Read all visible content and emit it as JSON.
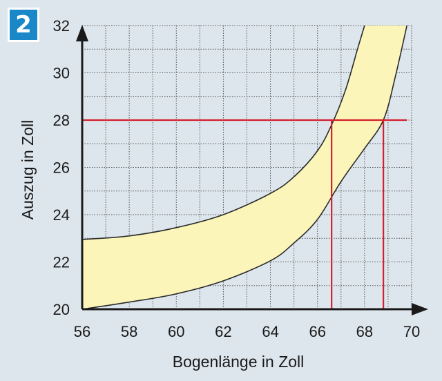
{
  "figure_number": "2",
  "chart_data": {
    "type": "area",
    "xlabel": "Bogenlänge in Zoll",
    "ylabel": "Auszug in Zoll",
    "xlim": [
      56,
      70
    ],
    "ylim": [
      20,
      32
    ],
    "x_ticks": [
      "56",
      "58",
      "60",
      "62",
      "64",
      "66",
      "68",
      "70"
    ],
    "y_ticks": [
      "20",
      "22",
      "24",
      "26",
      "28",
      "30",
      "32"
    ],
    "grid": true,
    "band": {
      "upper": [
        [
          56,
          22.95
        ],
        [
          58,
          23.1
        ],
        [
          60,
          23.45
        ],
        [
          62,
          24.0
        ],
        [
          64,
          24.9
        ],
        [
          65,
          25.6
        ],
        [
          66,
          26.7
        ],
        [
          66.6,
          27.8
        ],
        [
          67.2,
          29.3
        ],
        [
          67.7,
          31.0
        ],
        [
          68.0,
          32.0
        ]
      ],
      "lower": [
        [
          56,
          20.0
        ],
        [
          58,
          20.3
        ],
        [
          60,
          20.65
        ],
        [
          62,
          21.2
        ],
        [
          64,
          22.05
        ],
        [
          65,
          22.8
        ],
        [
          66,
          23.8
        ],
        [
          67,
          25.4
        ],
        [
          68,
          26.8
        ],
        [
          68.8,
          28.0
        ],
        [
          69.3,
          29.8
        ],
        [
          69.8,
          32.0
        ]
      ]
    },
    "reference_lines": [
      {
        "from": [
          56,
          28
        ],
        "to": [
          69.8,
          28
        ]
      },
      {
        "from": [
          66.6,
          20
        ],
        "to": [
          66.6,
          28
        ]
      },
      {
        "from": [
          68.8,
          20
        ],
        "to": [
          68.8,
          28
        ]
      }
    ],
    "colors": {
      "band_fill": "#fbf5b9",
      "band_stroke": "#2a2a2a",
      "reference": "#d21f2b",
      "grid": "#555555",
      "axis": "#1a1a1a"
    }
  }
}
